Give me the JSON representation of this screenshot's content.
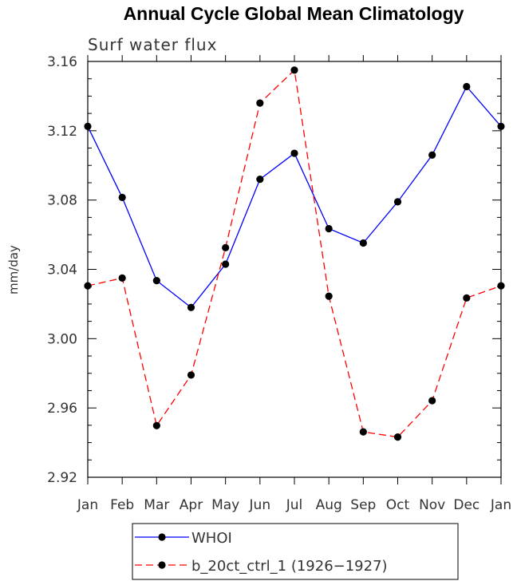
{
  "chart_data": {
    "type": "line",
    "title": "Annual Cycle Global Mean Climatology",
    "subtitle": "Surf water flux",
    "ylabel": "mm/day",
    "xlabel": "",
    "categories": [
      "Jan",
      "Feb",
      "Mar",
      "Apr",
      "May",
      "Jun",
      "Jul",
      "Aug",
      "Sep",
      "Oct",
      "Nov",
      "Dec",
      "Jan"
    ],
    "ylim": [
      2.92,
      3.16
    ],
    "yticks": [
      "2.92",
      "2.96",
      "3.00",
      "3.04",
      "3.08",
      "3.12",
      "3.16"
    ],
    "series": [
      {
        "name": "WHOI",
        "color": "#0000ff",
        "dash": "solid",
        "values": [
          3.1225,
          3.0815,
          3.0335,
          3.018,
          3.043,
          3.092,
          3.107,
          3.0635,
          3.0552,
          3.079,
          3.106,
          3.1455,
          3.1225
        ]
      },
      {
        "name": "b_20ct_ctrl_1 (1926−1927)",
        "color": "#ff0000",
        "dash": "dashed",
        "values": [
          3.0305,
          3.035,
          2.9498,
          2.979,
          3.0525,
          3.136,
          3.155,
          3.0245,
          2.9462,
          2.9432,
          2.9642,
          3.0235,
          3.0305
        ]
      }
    ],
    "legend": "bottom"
  }
}
